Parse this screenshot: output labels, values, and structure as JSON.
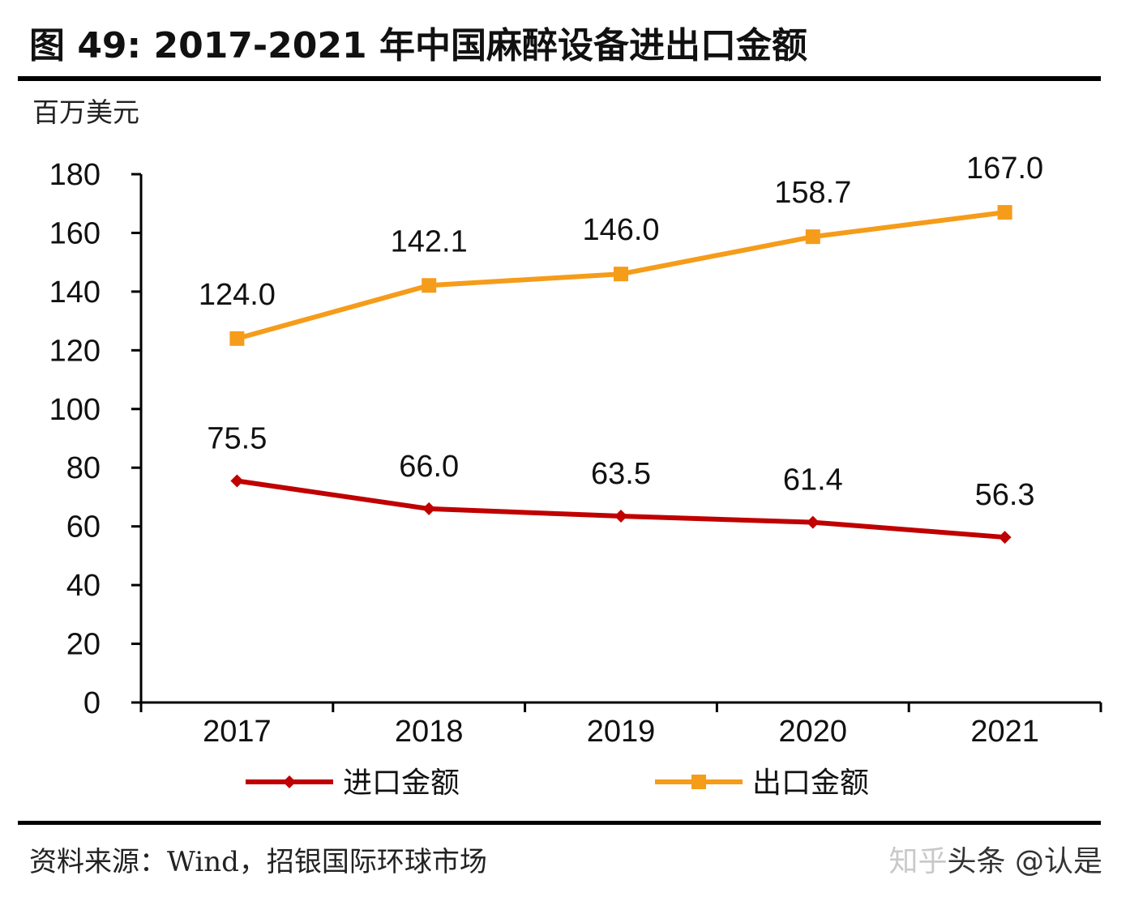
{
  "title": "图 49: 2017-2021 年中国麻醉设备进出口金额",
  "source": "资料来源：Wind，招银国际环球市场",
  "watermark": {
    "part1": "知乎",
    "part2": "头条 @认是"
  },
  "chart_data": {
    "type": "line",
    "title": "",
    "ylabel": "百万美元",
    "xlabel": "",
    "categories": [
      "2017",
      "2018",
      "2019",
      "2020",
      "2021"
    ],
    "ylim": [
      0,
      180
    ],
    "yticks": [
      0,
      20,
      40,
      60,
      80,
      100,
      120,
      140,
      160,
      180
    ],
    "grid": false,
    "legend_position": "bottom",
    "series": [
      {
        "name": "进口金额",
        "values": [
          75.5,
          66.0,
          63.5,
          61.4,
          56.3
        ],
        "labels": [
          "75.5",
          "66.0",
          "63.5",
          "61.4",
          "56.3"
        ],
        "color": "#c00000",
        "marker": "diamond"
      },
      {
        "name": "出口金额",
        "values": [
          124.0,
          142.1,
          146.0,
          158.7,
          167.0
        ],
        "labels": [
          "124.0",
          "142.1",
          "146.0",
          "158.7",
          "167.0"
        ],
        "color": "#f59c1a",
        "marker": "square"
      }
    ]
  }
}
